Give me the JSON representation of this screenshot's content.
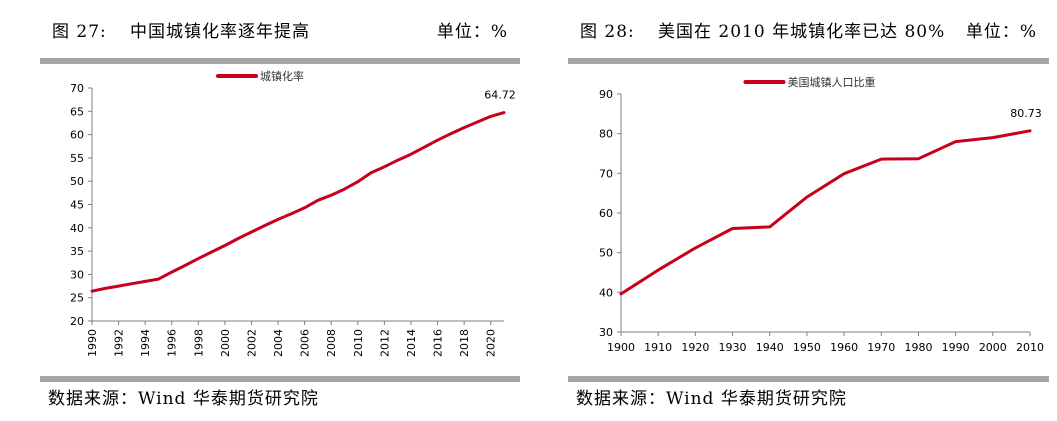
{
  "figures": [
    {
      "fig_num": "图 27:",
      "title": "中国城镇化率逐年提高",
      "unit": "单位：%",
      "source": "数据来源：Wind 华泰期货研究院",
      "chart_data": {
        "type": "line",
        "title": "",
        "xlabel": "",
        "ylabel": "",
        "legend": "城镇化率",
        "legend_position": "top-center",
        "ylim": [
          20,
          70
        ],
        "yticks": [
          20,
          25,
          30,
          35,
          40,
          45,
          50,
          55,
          60,
          65,
          70
        ],
        "xlim": [
          1990,
          2021
        ],
        "xtick_labels": [
          "1990",
          "1992",
          "1994",
          "1996",
          "1998",
          "2000",
          "2002",
          "2004",
          "2006",
          "2008",
          "2010",
          "2012",
          "2014",
          "2016",
          "2018",
          "2020"
        ],
        "x_label_orientation": "vertical",
        "series": [
          {
            "name": "城镇化率",
            "color": "#c8001e",
            "x": [
              1990,
              1991,
              1992,
              1993,
              1994,
              1995,
              1996,
              1997,
              1998,
              1999,
              2000,
              2001,
              2002,
              2003,
              2004,
              2005,
              2006,
              2007,
              2008,
              2009,
              2010,
              2011,
              2012,
              2013,
              2014,
              2015,
              2016,
              2017,
              2018,
              2019,
              2020,
              2021
            ],
            "values": [
              26.4,
              27.0,
              27.5,
              28.0,
              28.5,
              29.0,
              30.5,
              31.9,
              33.4,
              34.8,
              36.2,
              37.7,
              39.1,
              40.5,
              41.8,
              43.0,
              44.3,
              45.9,
              47.0,
              48.3,
              49.9,
              51.8,
              53.1,
              54.5,
              55.8,
              57.3,
              58.8,
              60.2,
              61.5,
              62.7,
              63.9,
              64.72
            ]
          }
        ],
        "annotations": [
          {
            "text": "64.72",
            "x": 2021,
            "y": 64.72
          }
        ]
      }
    },
    {
      "fig_num": "图 28:",
      "title": "美国在 2010 年城镇化率已达 80%",
      "unit": "单位：%",
      "source": "数据来源：Wind 华泰期货研究院",
      "chart_data": {
        "type": "line",
        "title": "",
        "xlabel": "",
        "ylabel": "",
        "legend": "美国城镇人口比重",
        "legend_position": "top-center",
        "ylim": [
          30,
          90
        ],
        "yticks": [
          30,
          40,
          50,
          60,
          70,
          80,
          90
        ],
        "xlim": [
          1900,
          2010
        ],
        "xtick_labels": [
          "1900",
          "1910",
          "1920",
          "1930",
          "1940",
          "1950",
          "1960",
          "1970",
          "1980",
          "1990",
          "2000",
          "2010"
        ],
        "x_label_orientation": "horizontal",
        "series": [
          {
            "name": "美国城镇人口比重",
            "color": "#c8001e",
            "x": [
              1900,
              1910,
              1920,
              1930,
              1940,
              1950,
              1960,
              1970,
              1980,
              1990,
              2000,
              2010
            ],
            "values": [
              39.6,
              45.6,
              51.2,
              56.1,
              56.5,
              64.0,
              69.9,
              73.6,
              73.7,
              78.0,
              79.0,
              80.73
            ]
          }
        ],
        "annotations": [
          {
            "text": "80.73",
            "x": 2010,
            "y": 80.73
          }
        ]
      }
    }
  ]
}
